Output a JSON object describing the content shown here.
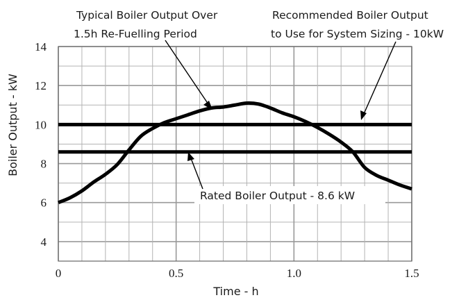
{
  "chart_data": {
    "type": "line",
    "title": "",
    "xlabel": "Time  - h",
    "ylabel": "Boiler Output - kW",
    "xlim": [
      0,
      1.5
    ],
    "ylim": [
      3,
      14
    ],
    "grid": true,
    "x_ticks": [
      "0",
      "0.5",
      "1.0",
      "1.5"
    ],
    "y_ticks": [
      "4",
      "6",
      "8",
      "10",
      "12",
      "14"
    ],
    "series": [
      {
        "name": "Typical Boiler Output Over 1.5h Re-Fuelling Period",
        "color": "#000000",
        "x": [
          0,
          0.05,
          0.1,
          0.15,
          0.2,
          0.25,
          0.3,
          0.35,
          0.4,
          0.45,
          0.5,
          0.55,
          0.6,
          0.65,
          0.7,
          0.75,
          0.8,
          0.85,
          0.9,
          0.95,
          1.0,
          1.05,
          1.1,
          1.15,
          1.2,
          1.25,
          1.3,
          1.35,
          1.4,
          1.45,
          1.5
        ],
        "y": [
          6.0,
          6.25,
          6.6,
          7.05,
          7.45,
          7.95,
          8.7,
          9.4,
          9.8,
          10.1,
          10.3,
          10.5,
          10.7,
          10.85,
          10.9,
          11.0,
          11.1,
          11.05,
          10.85,
          10.6,
          10.4,
          10.15,
          9.85,
          9.5,
          9.1,
          8.6,
          7.8,
          7.4,
          7.15,
          6.9,
          6.7
        ]
      },
      {
        "name": "Recommended Boiler Output to Use for System Sizing - 10kW",
        "color": "#000000",
        "x": [
          0,
          1.5
        ],
        "y": [
          10,
          10
        ]
      },
      {
        "name": "Rated Boiler Output - 8.6 kW",
        "color": "#000000",
        "x": [
          0,
          1.5
        ],
        "y": [
          8.6,
          8.6
        ]
      }
    ],
    "annotations": [
      {
        "line1": "Typical Boiler Output Over",
        "line2": "1.5h Re-Fuelling Period"
      },
      {
        "line1": "Recommended Boiler Output",
        "line2": "to Use for System Sizing - 10kW"
      },
      {
        "line1": "Rated Boiler Output - 8.6 kW"
      }
    ]
  }
}
